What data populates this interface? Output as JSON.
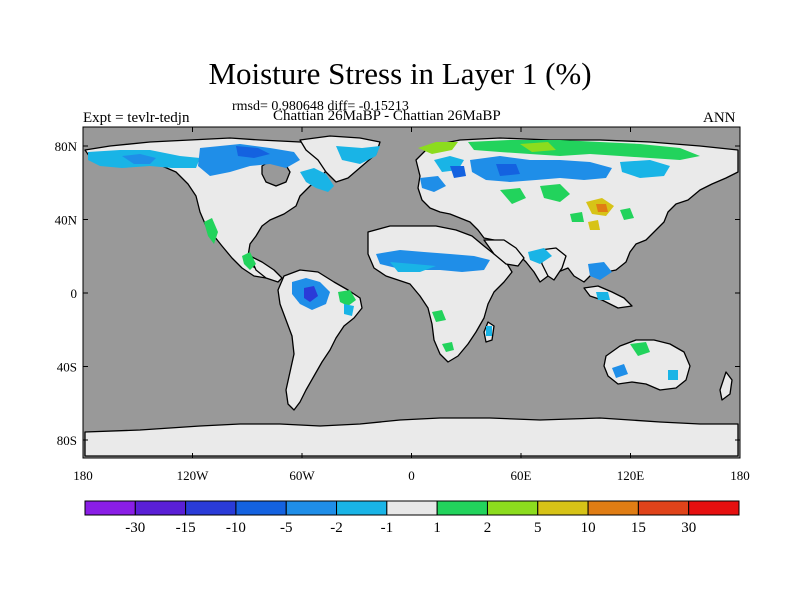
{
  "title": "Moisture Stress in Layer 1 (%)",
  "stats": "rmsd= 0.980648 diff= -0.15213",
  "experiment": "Expt = tevlr-tedjn",
  "cases": "Chattian  26MaBP - Chattian  26MaBP",
  "season": "ANN",
  "x_ticks": [
    "180",
    "120W",
    "60W",
    "0",
    "60E",
    "120E",
    "180"
  ],
  "y_ticks": [
    "80N",
    "40N",
    "0",
    "40S",
    "80S"
  ],
  "colorbar": {
    "colors": [
      "#8a1ee6",
      "#5a1fd6",
      "#2a3bd8",
      "#1462e0",
      "#1f8ee8",
      "#19b4e6",
      "#e8e8e8",
      "#22d35c",
      "#8cdc1e",
      "#d7c317",
      "#e07d14",
      "#e0431a",
      "#e61010"
    ],
    "labels": [
      "-30",
      "-15",
      "-10",
      "-5",
      "-2",
      "-1",
      "1",
      "2",
      "5",
      "10",
      "15",
      "30"
    ]
  },
  "colors": {
    "ocean": "#999999",
    "land": "#eaeaea",
    "coast": "#000000"
  }
}
